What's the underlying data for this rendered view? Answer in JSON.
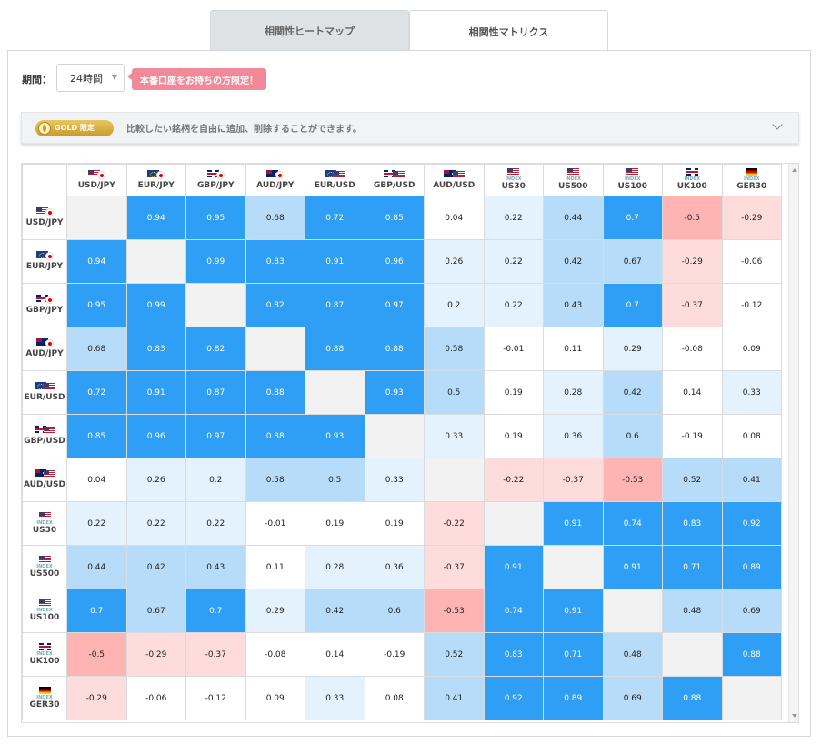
{
  "tabs": [
    {
      "label": "相関性ヒートマップ",
      "active": false
    },
    {
      "label": "相関性マトリクス",
      "active": true
    }
  ],
  "period": {
    "label": "期間：",
    "value": "24時間"
  },
  "promo": {
    "label": "本番口座をお持ちの方限定！"
  },
  "gold": {
    "badge": "GOLD 限定",
    "text": "比較したい銘柄を自由に追加、削除することができます。"
  },
  "colors": {
    "strong_positive": "#2f9ef5",
    "positive": "#b7dcfa",
    "weak_positive": "#e4f2fd",
    "neutral": "#ffffff",
    "weak_negative": "#ffdcdc",
    "strong_negative": "#ffb4b4"
  },
  "instruments": [
    {
      "label": "USD/JPY",
      "flags": [
        "us",
        "jp"
      ],
      "sub": ""
    },
    {
      "label": "EUR/JPY",
      "flags": [
        "eu",
        "jp"
      ],
      "sub": ""
    },
    {
      "label": "GBP/JPY",
      "flags": [
        "gb",
        "jp"
      ],
      "sub": ""
    },
    {
      "label": "AUD/JPY",
      "flags": [
        "au",
        "jp"
      ],
      "sub": ""
    },
    {
      "label": "EUR/USD",
      "flags": [
        "eu",
        "us"
      ],
      "sub": ""
    },
    {
      "label": "GBP/USD",
      "flags": [
        "gb",
        "us"
      ],
      "sub": ""
    },
    {
      "label": "AUD/USD",
      "flags": [
        "au",
        "us"
      ],
      "sub": ""
    },
    {
      "label": "US30",
      "flags": [
        "us"
      ],
      "sub": "INDEX"
    },
    {
      "label": "US500",
      "flags": [
        "us"
      ],
      "sub": "INDEX"
    },
    {
      "label": "US100",
      "flags": [
        "us"
      ],
      "sub": "INDEX"
    },
    {
      "label": "UK100",
      "flags": [
        "gb"
      ],
      "sub": "INDEX"
    },
    {
      "label": "GER30",
      "flags": [
        "de"
      ],
      "sub": "INDEX"
    }
  ],
  "matrix": [
    [
      null,
      "0.94",
      "0.95",
      "0.68",
      "0.72",
      "0.85",
      "0.04",
      "0.22",
      "0.44",
      "0.7",
      "-0.5",
      "-0.29"
    ],
    [
      "0.94",
      null,
      "0.99",
      "0.83",
      "0.91",
      "0.96",
      "0.26",
      "0.22",
      "0.42",
      "0.67",
      "-0.29",
      "-0.06"
    ],
    [
      "0.95",
      "0.99",
      null,
      "0.82",
      "0.87",
      "0.97",
      "0.2",
      "0.22",
      "0.43",
      "0.7",
      "-0.37",
      "-0.12"
    ],
    [
      "0.68",
      "0.83",
      "0.82",
      null,
      "0.88",
      "0.88",
      "0.58",
      "-0.01",
      "0.11",
      "0.29",
      "-0.08",
      "0.09"
    ],
    [
      "0.72",
      "0.91",
      "0.87",
      "0.88",
      null,
      "0.93",
      "0.5",
      "0.19",
      "0.28",
      "0.42",
      "0.14",
      "0.33"
    ],
    [
      "0.85",
      "0.96",
      "0.97",
      "0.88",
      "0.93",
      null,
      "0.33",
      "0.19",
      "0.36",
      "0.6",
      "-0.19",
      "0.08"
    ],
    [
      "0.04",
      "0.26",
      "0.2",
      "0.58",
      "0.5",
      "0.33",
      null,
      "-0.22",
      "-0.37",
      "-0.53",
      "0.52",
      "0.41"
    ],
    [
      "0.22",
      "0.22",
      "0.22",
      "-0.01",
      "0.19",
      "0.19",
      "-0.22",
      null,
      "0.91",
      "0.74",
      "0.83",
      "0.92"
    ],
    [
      "0.44",
      "0.42",
      "0.43",
      "0.11",
      "0.28",
      "0.36",
      "-0.37",
      "0.91",
      null,
      "0.91",
      "0.71",
      "0.89"
    ],
    [
      "0.7",
      "0.67",
      "0.7",
      "0.29",
      "0.42",
      "0.6",
      "-0.53",
      "0.74",
      "0.91",
      null,
      "0.48",
      "0.69"
    ],
    [
      "-0.5",
      "-0.29",
      "-0.37",
      "-0.08",
      "0.14",
      "-0.19",
      "0.52",
      "0.83",
      "0.71",
      "0.48",
      null,
      "0.88"
    ],
    [
      "-0.29",
      "-0.06",
      "-0.12",
      "0.09",
      "0.33",
      "0.08",
      "0.41",
      "0.92",
      "0.89",
      "0.69",
      "0.88",
      null
    ]
  ]
}
